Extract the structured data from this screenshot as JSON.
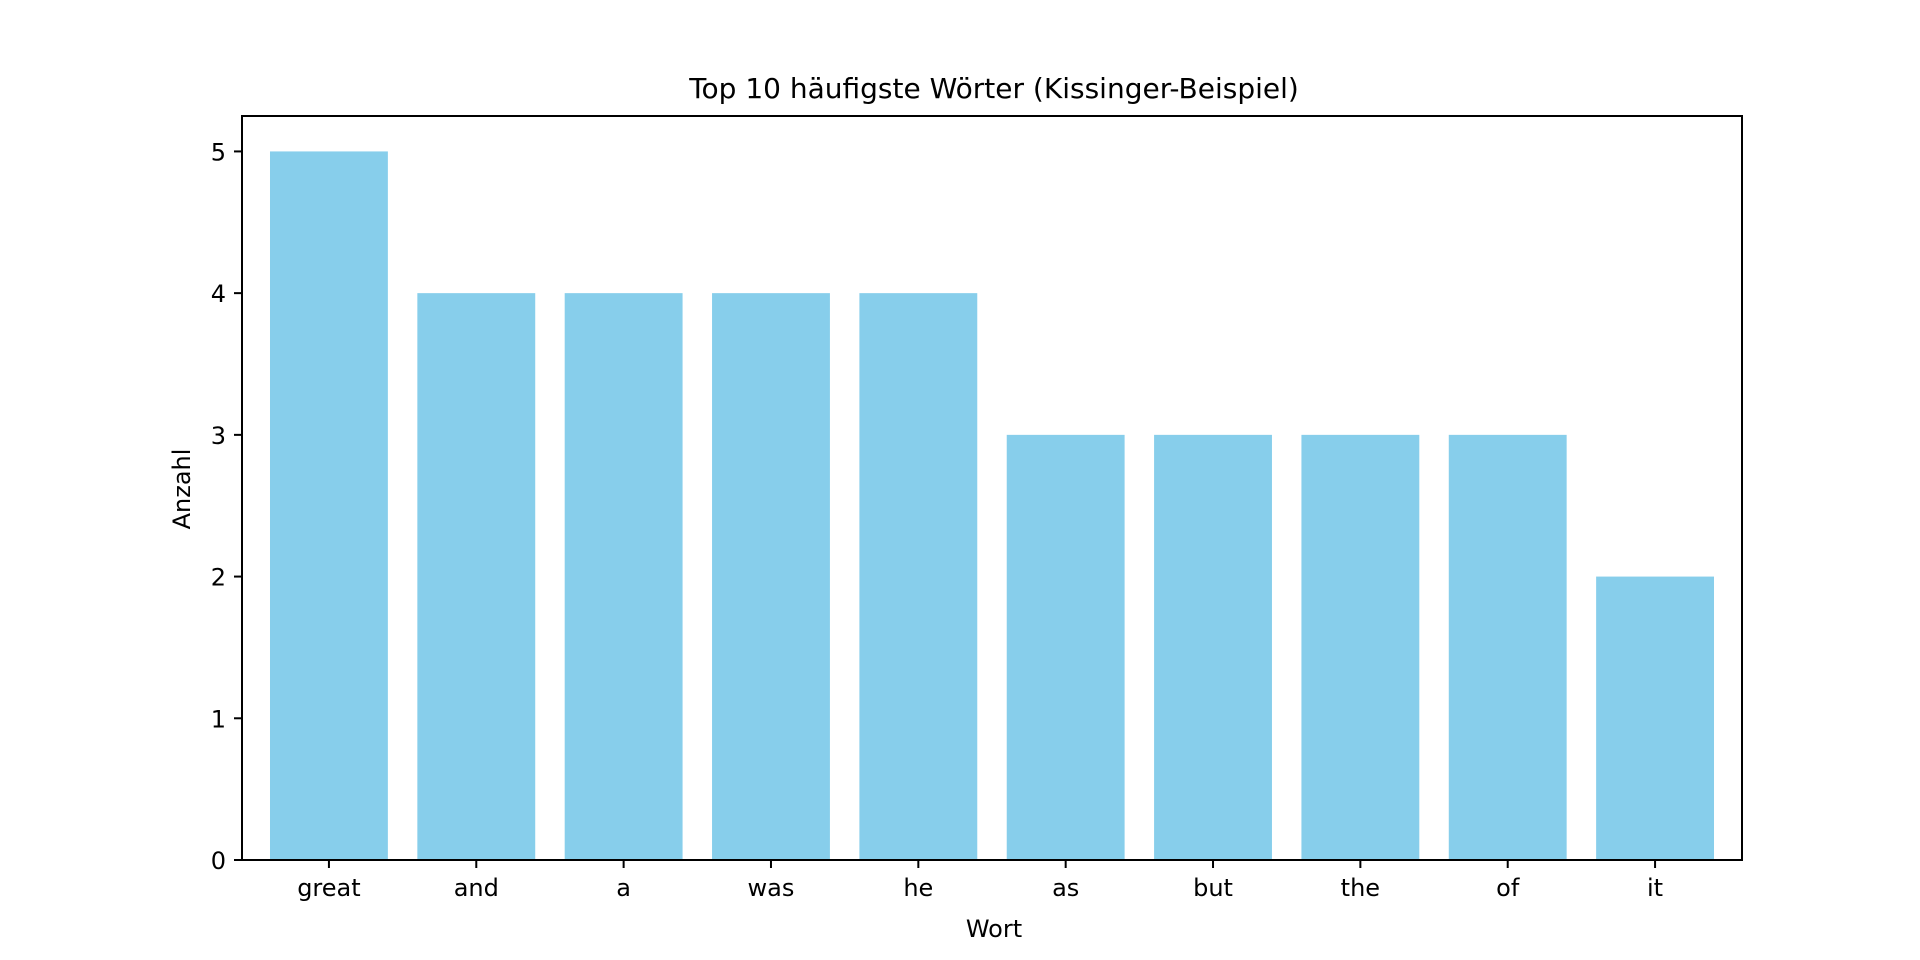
{
  "chart_data": {
    "type": "bar",
    "title": "Top 10 häufigste Wörter (Kissinger-Beispiel)",
    "xlabel": "Wort",
    "ylabel": "Anzahl",
    "categories": [
      "great",
      "and",
      "a",
      "was",
      "he",
      "as",
      "but",
      "the",
      "of",
      "it"
    ],
    "values": [
      5,
      4,
      4,
      4,
      4,
      3,
      3,
      3,
      3,
      2
    ],
    "ylim": [
      0,
      5.25
    ],
    "yticks": [
      0,
      1,
      2,
      3,
      4,
      5
    ],
    "grid": false,
    "bar_color": "#87ceeb",
    "axis_color": "#000000"
  }
}
